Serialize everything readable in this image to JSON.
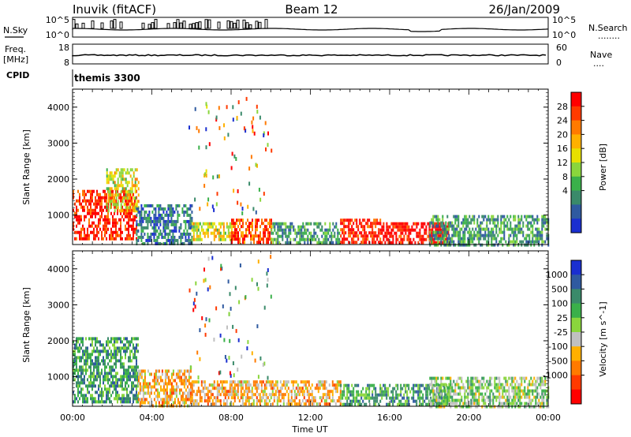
{
  "header": {
    "station": "Inuvik (fitACF)",
    "beam": "Beam 12",
    "date": "26/Jan/2009"
  },
  "strips": {
    "nsky": {
      "left_label": "N.Sky",
      "right_label": "N.Search",
      "right_dots": "........",
      "left_ticks": [
        "10^5",
        "10^0"
      ],
      "right_ticks": [
        "10^5",
        "10^0"
      ]
    },
    "freq": {
      "left_label_top": "Freq.",
      "left_label_bottom": "[MHz]",
      "right_label": "Nave",
      "right_dots": "....",
      "left_ticks": [
        "18",
        "8"
      ],
      "right_ticks": [
        "60",
        "0"
      ]
    },
    "cpid": {
      "label": "CPID",
      "value": "themis 3300"
    }
  },
  "chart_data": [
    {
      "type": "heatmap",
      "name": "power",
      "ylabel": "Slant Range [km]",
      "xlabel": "",
      "x_ticks": [
        "00:00",
        "04:00",
        "08:00",
        "12:00",
        "16:00",
        "20:00",
        "00:00"
      ],
      "x_range_hours": [
        0,
        24
      ],
      "y_ticks": [
        1000,
        2000,
        3000,
        4000
      ],
      "ylim": [
        180,
        4500
      ],
      "colorbar": {
        "label": "Power [dB]",
        "labels": [
          "28",
          "24",
          "20",
          "16",
          "12",
          "8",
          "4"
        ],
        "colors": [
          "#ff0000",
          "#ff3a00",
          "#ff7a00",
          "#ffb000",
          "#e8e000",
          "#8ad63c",
          "#3ab04a",
          "#3a8a6a",
          "#2f5aa0",
          "#1a2fd0"
        ]
      },
      "regions": [
        {
          "t0": 0.0,
          "t1": 3.2,
          "r0": 300,
          "r1": 1700,
          "level": 0.9
        },
        {
          "t0": 1.7,
          "t1": 3.3,
          "r0": 1100,
          "r1": 2300,
          "level": 0.55
        },
        {
          "t0": 3.2,
          "t1": 6.0,
          "r0": 200,
          "r1": 1300,
          "level": 0.2
        },
        {
          "t0": 6.0,
          "t1": 8.0,
          "r0": 300,
          "r1": 800,
          "level": 0.55
        },
        {
          "t0": 8.0,
          "t1": 10.0,
          "r0": 200,
          "r1": 900,
          "level": 0.85
        },
        {
          "t0": 10.0,
          "t1": 13.5,
          "r0": 200,
          "r1": 800,
          "level": 0.3
        },
        {
          "t0": 13.5,
          "t1": 15.5,
          "r0": 200,
          "r1": 900,
          "level": 0.9
        },
        {
          "t0": 15.5,
          "t1": 19.0,
          "r0": 200,
          "r1": 800,
          "level": 0.95
        },
        {
          "t0": 18.0,
          "t1": 24.0,
          "r0": 200,
          "r1": 1000,
          "level": 0.3
        }
      ]
    },
    {
      "type": "heatmap",
      "name": "velocity",
      "ylabel": "Slant Range [km]",
      "xlabel": "Time UT",
      "x_ticks": [
        "00:00",
        "04:00",
        "08:00",
        "12:00",
        "16:00",
        "20:00",
        "00:00"
      ],
      "x_range_hours": [
        0,
        24
      ],
      "y_ticks": [
        1000,
        2000,
        3000,
        4000
      ],
      "ylim": [
        180,
        4500
      ],
      "colorbar": {
        "label": "Velocity [m s^-1]",
        "labels": [
          "1000",
          "500",
          "100",
          "25",
          "-25",
          "-100",
          "-500",
          "-1000"
        ],
        "colors": [
          "#1a2fd0",
          "#2f5aa0",
          "#3a8a6a",
          "#3ab04a",
          "#8ad63c",
          "#c0c0c0",
          "#ffb000",
          "#ff7a00",
          "#ff3a00",
          "#ff0000"
        ]
      },
      "regions": [
        {
          "t0": 0.0,
          "t1": 3.3,
          "r0": 300,
          "r1": 2100,
          "level": 0.7
        },
        {
          "t0": 3.3,
          "t1": 6.0,
          "r0": 200,
          "r1": 1200,
          "level": 0.35
        },
        {
          "t0": 6.0,
          "t1": 13.5,
          "r0": 200,
          "r1": 900,
          "level": 0.35
        },
        {
          "t0": 13.5,
          "t1": 19.0,
          "r0": 200,
          "r1": 800,
          "level": 0.68
        },
        {
          "t0": 18.0,
          "t1": 24.0,
          "r0": 200,
          "r1": 1000,
          "level": 0.55
        }
      ]
    }
  ]
}
